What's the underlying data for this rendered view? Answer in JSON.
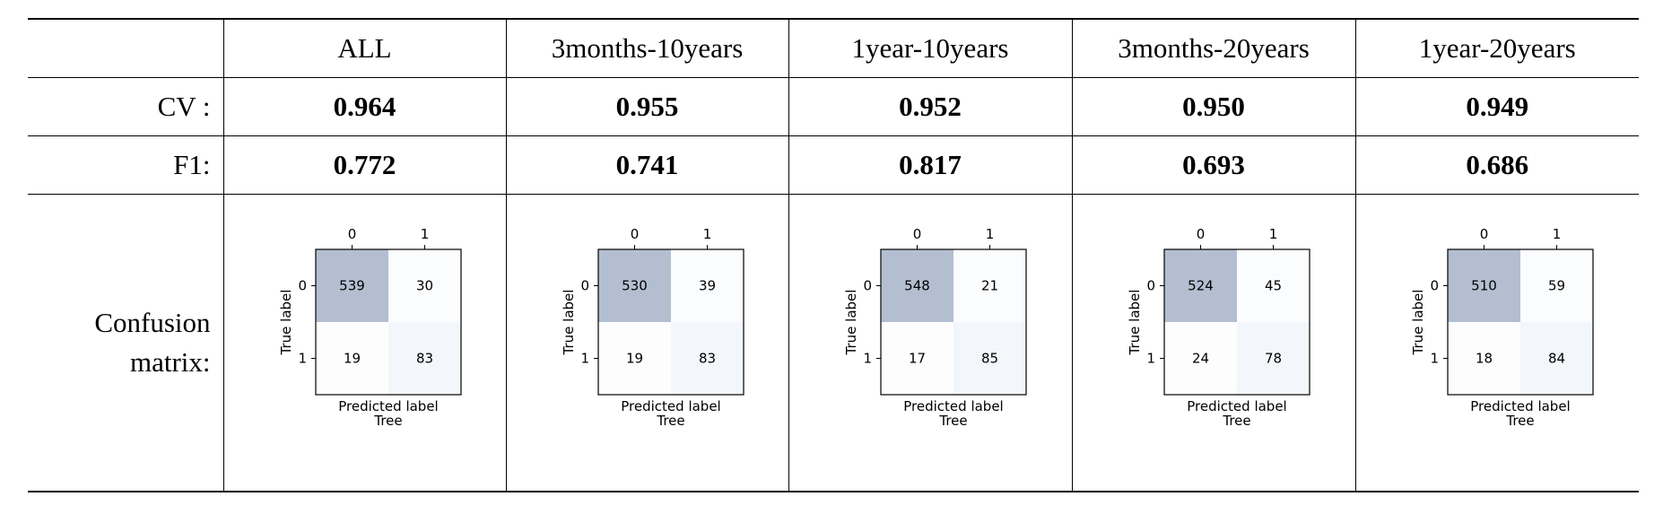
{
  "columns": [
    {
      "header": "ALL",
      "cv": "0.964",
      "f1": "0.772",
      "matrix": [
        [
          539,
          30
        ],
        [
          19,
          83
        ]
      ]
    },
    {
      "header": "3months-10years",
      "cv": "0.955",
      "f1": "0.741",
      "matrix": [
        [
          530,
          39
        ],
        [
          19,
          83
        ]
      ]
    },
    {
      "header": "1year-10years",
      "cv": "0.952",
      "f1": "0.817",
      "matrix": [
        [
          548,
          21
        ],
        [
          17,
          85
        ]
      ]
    },
    {
      "header": "3months-20years",
      "cv": "0.950",
      "f1": "0.693",
      "matrix": [
        [
          524,
          45
        ],
        [
          24,
          78
        ]
      ]
    },
    {
      "header": "1year-20years",
      "cv": "0.949",
      "f1": "0.686",
      "matrix": [
        [
          510,
          59
        ],
        [
          18,
          84
        ]
      ]
    }
  ],
  "row_labels": {
    "cv": "CV :",
    "f1": "F1:",
    "cm_line1": "Confusion",
    "cm_line2": "matrix:"
  },
  "matrix_labels": {
    "classes": [
      "0",
      "1"
    ],
    "xlabel": "Predicted label",
    "model": "Tree",
    "ylabel": "True label"
  },
  "colors": {
    "cell_max": "#b3bfd1",
    "cell_min": "#ffffff",
    "cell_low_tint": "#f3f6fa"
  }
}
